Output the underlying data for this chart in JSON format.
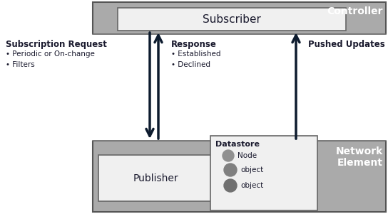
{
  "fig_w": 5.44,
  "fig_h": 3.01,
  "dpi": 100,
  "bg_white": "#ffffff",
  "grey_main": "#aaaaaa",
  "grey_dark": "#999999",
  "box_fill": "#f0f0f0",
  "box_edge": "#666666",
  "arrow_color": "#0d1b2e",
  "text_color": "#1a1a2e",
  "white_text": "#ffffff",
  "controller_label": "Controller",
  "network_label": "Network\nElement",
  "subscriber_label": "Subscriber",
  "publisher_label": "Publisher",
  "datastore_label": "Datastore",
  "node_label": "Node",
  "obj1_label": "object",
  "obj2_label": "object",
  "sub_req_title": "Subscription Request",
  "sub_req_b1": "• Periodic or On-change",
  "sub_req_b2": "• Filters",
  "response_title": "Response",
  "response_b1": "• Established",
  "response_b2": "• Declined",
  "pushed_title": "Pushed Updates",
  "grey_color": "#aaaaaa"
}
